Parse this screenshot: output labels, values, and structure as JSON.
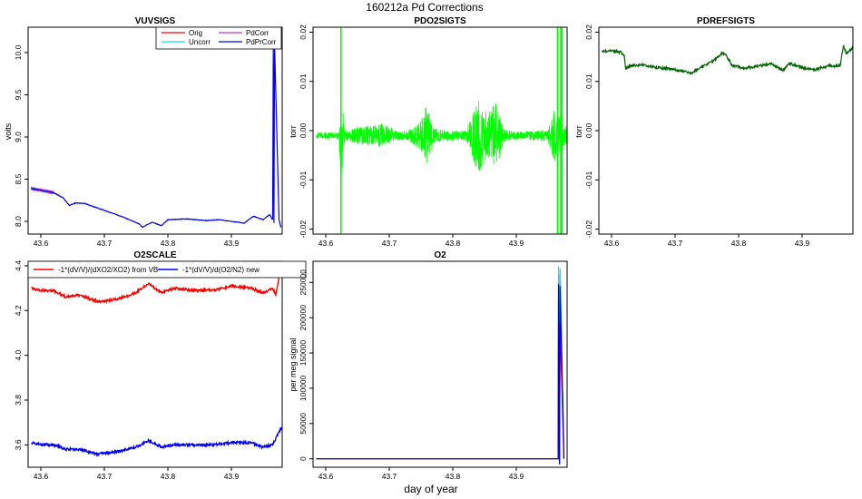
{
  "suptitle": "160212a   Pd Corrections",
  "xlabel": "day of year",
  "colors": {
    "orig": "#ff0000",
    "uncorr": "#00e5ee",
    "pdcorr": "#cc33cc",
    "pdprcorr": "#0000ee",
    "pdo2": "#00ff00",
    "pdref": "#006400",
    "o2scale_vb": "#ff0000",
    "o2scale_new": "#0000ff"
  },
  "chart_data": [
    {
      "id": "vuvsigs",
      "type": "line",
      "title": "VUVSIGS",
      "xlabel": "",
      "ylabel": "volts",
      "xlim": [
        43.58,
        43.98
      ],
      "ylim": [
        7.85,
        10.3
      ],
      "x_ticks": [
        "43.6",
        "43.7",
        "43.8",
        "43.9"
      ],
      "y_ticks": [
        "8.0",
        "8.5",
        "9.0",
        "9.5",
        "10.0"
      ],
      "legend": {
        "placement": "top-right",
        "entries": [
          "Orig",
          "Uncorr",
          "PdCorr",
          "PdPrCorr"
        ]
      },
      "series": [
        {
          "name": "Orig",
          "x": [
            43.585,
            43.6,
            43.62
          ],
          "y": [
            8.39,
            8.37,
            8.34
          ]
        },
        {
          "name": "Uncorr",
          "x": [
            43.585,
            43.6,
            43.62
          ],
          "y": [
            8.39,
            8.37,
            8.34
          ]
        },
        {
          "name": "PdCorr",
          "x": [
            43.585,
            43.6,
            43.62
          ],
          "y": [
            8.39,
            8.37,
            8.34
          ]
        },
        {
          "name": "PdPrCorr",
          "x": [
            43.585,
            43.6,
            43.62,
            43.635,
            43.645,
            43.655,
            43.67,
            43.7,
            43.73,
            43.755,
            43.76,
            43.775,
            43.79,
            43.8,
            43.83,
            43.86,
            43.88,
            43.9,
            43.92,
            43.935,
            43.95,
            43.96,
            43.965,
            43.966,
            43.967,
            43.968,
            43.975,
            43.978
          ],
          "y": [
            8.39,
            8.37,
            8.34,
            8.28,
            8.19,
            8.22,
            8.21,
            8.13,
            8.05,
            7.97,
            7.93,
            7.99,
            7.95,
            8.02,
            8.03,
            8.01,
            8.02,
            8.0,
            7.98,
            8.06,
            8.02,
            8.08,
            8.02,
            10.1,
            7.98,
            10.1,
            8.02,
            7.93
          ]
        }
      ]
    },
    {
      "id": "pdo2sigts",
      "type": "line",
      "title": "PDO2SIGTS",
      "xlabel": "",
      "ylabel": "torr",
      "xlim": [
        43.58,
        43.98
      ],
      "ylim": [
        -0.021,
        0.021
      ],
      "x_ticks": [
        "43.6",
        "43.7",
        "43.8",
        "43.9"
      ],
      "y_ticks": [
        "-0.02",
        "-0.01",
        "0.00",
        "0.01",
        "0.02"
      ],
      "noise_envelope": [
        {
          "x": 43.585,
          "half_width": 0.0006
        },
        {
          "x": 43.62,
          "half_width": 0.0007
        },
        {
          "x": 43.624,
          "half_width": 0.009
        },
        {
          "x": 43.63,
          "half_width": 0.001
        },
        {
          "x": 43.66,
          "half_width": 0.002
        },
        {
          "x": 43.69,
          "half_width": 0.0025
        },
        {
          "x": 43.71,
          "half_width": 0.001
        },
        {
          "x": 43.73,
          "half_width": 0.001
        },
        {
          "x": 43.75,
          "half_width": 0.003
        },
        {
          "x": 43.76,
          "half_width": 0.007
        },
        {
          "x": 43.77,
          "half_width": 0.0015
        },
        {
          "x": 43.8,
          "half_width": 0.001
        },
        {
          "x": 43.82,
          "half_width": 0.001
        },
        {
          "x": 43.84,
          "half_width": 0.008
        },
        {
          "x": 43.855,
          "half_width": 0.0045
        },
        {
          "x": 43.868,
          "half_width": 0.007
        },
        {
          "x": 43.88,
          "half_width": 0.0015
        },
        {
          "x": 43.9,
          "half_width": 0.0008
        },
        {
          "x": 43.93,
          "half_width": 0.001
        },
        {
          "x": 43.95,
          "half_width": 0.0012
        },
        {
          "x": 43.96,
          "half_width": 0.006
        },
        {
          "x": 43.978,
          "half_width": 0.002
        }
      ],
      "spikes": [
        {
          "x": 43.624,
          "from": -0.021,
          "to": 0.021
        },
        {
          "x": 43.965,
          "from": -0.021,
          "to": 0.021
        },
        {
          "x": 43.97,
          "from": -0.021,
          "to": 0.021
        },
        {
          "x": 43.972,
          "from": -0.021,
          "to": 0.021
        }
      ],
      "series": [
        {
          "name": "",
          "x": [
            43.585,
            43.98
          ],
          "y": [
            -0.001,
            -0.001
          ]
        }
      ]
    },
    {
      "id": "pdrefsigts",
      "type": "line",
      "title": "PDREFSIGTS",
      "xlabel": "",
      "ylabel": "torr",
      "xlim": [
        43.58,
        43.98
      ],
      "ylim": [
        -0.021,
        0.021
      ],
      "x_ticks": [
        "43.6",
        "43.7",
        "43.8",
        "43.9"
      ],
      "y_ticks": [
        "-0.02",
        "-0.01",
        "0.00",
        "0.01",
        "0.02"
      ],
      "series": [
        {
          "name": "",
          "x": [
            43.585,
            43.6,
            43.615,
            43.62,
            43.622,
            43.63,
            43.65,
            43.67,
            43.69,
            43.71,
            43.725,
            43.74,
            43.76,
            43.775,
            43.78,
            43.79,
            43.81,
            43.83,
            43.85,
            43.87,
            43.88,
            43.9,
            43.92,
            43.94,
            43.96,
            43.965,
            43.97,
            43.98
          ],
          "y": [
            0.0161,
            0.0162,
            0.0159,
            0.0154,
            0.0126,
            0.0132,
            0.0133,
            0.0128,
            0.0126,
            0.0121,
            0.0117,
            0.0128,
            0.0141,
            0.0158,
            0.0153,
            0.0132,
            0.0127,
            0.0131,
            0.0136,
            0.0123,
            0.0137,
            0.0128,
            0.0124,
            0.0131,
            0.0132,
            0.0172,
            0.0156,
            0.0169
          ]
        }
      ]
    },
    {
      "id": "o2scale",
      "type": "line",
      "title": "O2SCALE",
      "xlabel": "",
      "ylabel": "",
      "xlim": [
        43.58,
        43.98
      ],
      "ylim": [
        3.5,
        4.42
      ],
      "x_ticks": [
        "43.6",
        "43.7",
        "43.8",
        "43.9"
      ],
      "y_ticks": [
        "3.6",
        "3.8",
        "4.0",
        "4.2",
        "4.4"
      ],
      "legend": {
        "placement": "top",
        "entries": [
          "-1*(dV/V)/(dXO2/XO2) from VB",
          "-1*(dV/V)/d(O2/N2) new"
        ]
      },
      "series": [
        {
          "name": "-1*(dV/V)/(dXO2/XO2) from VB",
          "x": [
            43.585,
            43.6,
            43.62,
            43.64,
            43.66,
            43.69,
            43.72,
            43.75,
            43.77,
            43.79,
            43.81,
            43.84,
            43.87,
            43.9,
            43.93,
            43.95,
            43.965,
            43.97,
            43.975
          ],
          "y": [
            4.3,
            4.29,
            4.29,
            4.26,
            4.27,
            4.24,
            4.25,
            4.28,
            4.32,
            4.28,
            4.3,
            4.29,
            4.29,
            4.31,
            4.3,
            4.28,
            4.3,
            4.27,
            4.35
          ]
        },
        {
          "name": "-1*(dV/V)/d(O2/N2) new",
          "x": [
            43.585,
            43.6,
            43.62,
            43.64,
            43.66,
            43.69,
            43.72,
            43.75,
            43.77,
            43.79,
            43.81,
            43.84,
            43.87,
            43.9,
            43.93,
            43.95,
            43.965,
            43.97,
            43.975,
            43.98
          ],
          "y": [
            3.61,
            3.6,
            3.6,
            3.58,
            3.58,
            3.56,
            3.57,
            3.59,
            3.62,
            3.59,
            3.6,
            3.6,
            3.6,
            3.61,
            3.61,
            3.59,
            3.6,
            3.63,
            3.66,
            3.68
          ]
        }
      ]
    },
    {
      "id": "o2",
      "type": "line",
      "title": "O2",
      "xlabel": "",
      "ylabel": "per meg signal",
      "xlim": [
        43.58,
        43.98
      ],
      "ylim": [
        -12000,
        280000
      ],
      "x_ticks": [
        "43.6",
        "43.7",
        "43.8",
        "43.9"
      ],
      "y_ticks": [
        "0",
        "50000",
        "100000",
        "150000",
        "200000",
        "250000"
      ],
      "series": [
        {
          "name": "",
          "x": [
            43.585,
            43.966,
            43.9665,
            43.968,
            43.969,
            43.975
          ],
          "y": [
            0,
            0,
            262000,
            -8000,
            262000,
            0
          ]
        },
        {
          "name": "",
          "x": [
            43.585,
            43.966,
            43.9665,
            43.968,
            43.969,
            43.975
          ],
          "y": [
            0,
            0,
            273000,
            -8000,
            270000,
            0
          ]
        },
        {
          "name": "",
          "x": [
            43.585,
            43.966,
            43.9665,
            43.968,
            43.969,
            43.975
          ],
          "y": [
            0,
            0,
            192000,
            -8000,
            190000,
            0
          ]
        },
        {
          "name": "",
          "x": [
            43.585,
            43.966,
            43.9665,
            43.968,
            43.969,
            43.975
          ],
          "y": [
            0,
            0,
            248000,
            -8000,
            245000,
            0
          ]
        }
      ]
    }
  ]
}
